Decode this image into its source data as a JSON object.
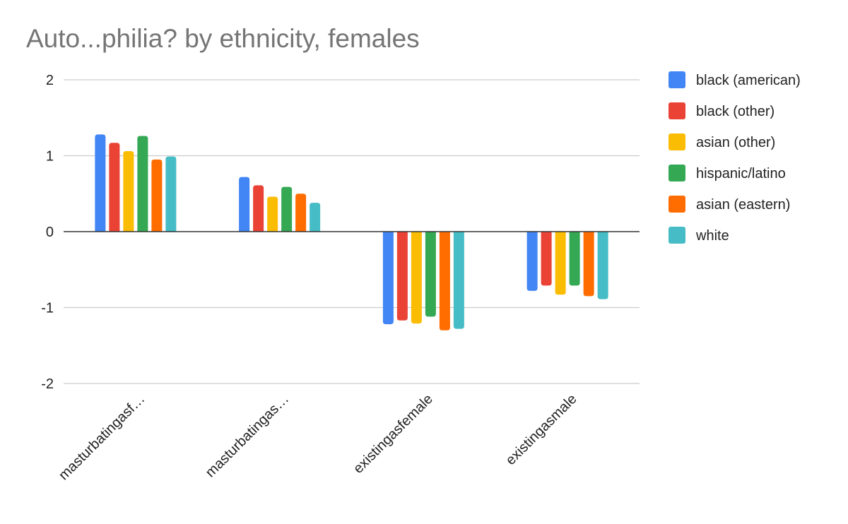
{
  "chart_data": {
    "type": "bar",
    "title": "Auto...philia? by ethnicity, females",
    "xlabel": "",
    "ylabel": "",
    "categories": [
      "masturbatingasf…",
      "masturbatingas…",
      "existingasfemale",
      "existingasmale"
    ],
    "ylim": [
      -2,
      2
    ],
    "yticks": [
      2,
      1,
      0,
      -1,
      -2
    ],
    "grid": true,
    "legend_position": "right",
    "series": [
      {
        "name": "black (american)",
        "color": "#4285F4",
        "values": [
          1.28,
          0.72,
          -1.22,
          -0.78
        ]
      },
      {
        "name": "black (other)",
        "color": "#EA4335",
        "values": [
          1.17,
          0.61,
          -1.17,
          -0.71
        ]
      },
      {
        "name": "asian (other)",
        "color": "#FBBC04",
        "values": [
          1.06,
          0.46,
          -1.21,
          -0.83
        ]
      },
      {
        "name": "hispanic/latino",
        "color": "#34A853",
        "values": [
          1.26,
          0.59,
          -1.12,
          -0.71
        ]
      },
      {
        "name": "asian (eastern)",
        "color": "#FF6D01",
        "values": [
          0.95,
          0.5,
          -1.3,
          -0.85
        ]
      },
      {
        "name": "white",
        "color": "#46BDC6",
        "values": [
          0.99,
          0.38,
          -1.28,
          -0.89
        ]
      }
    ]
  }
}
